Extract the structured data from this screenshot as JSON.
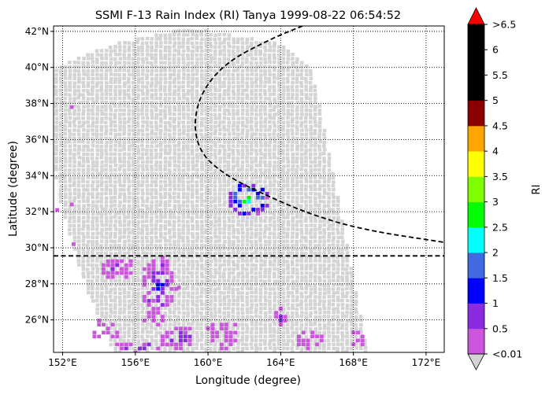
{
  "chart_data": {
    "type": "heatmap",
    "title": "SSMI F-13 Rain Index (RI) Tanya 1999-08-22 06:54:52",
    "xlabel": "Longitude (degree)",
    "ylabel": "Latitude (degree)",
    "xlim": [
      151.5,
      173.0
    ],
    "ylim": [
      24.2,
      42.3
    ],
    "xticks": [
      {
        "value": 152,
        "label": "152°E"
      },
      {
        "value": 156,
        "label": "156°E"
      },
      {
        "value": 160,
        "label": "160°E"
      },
      {
        "value": 164,
        "label": "164°E"
      },
      {
        "value": 168,
        "label": "168°E"
      },
      {
        "value": 172,
        "label": "172°E"
      }
    ],
    "yticks": [
      {
        "value": 26,
        "label": "26°N"
      },
      {
        "value": 28,
        "label": "28°N"
      },
      {
        "value": 30,
        "label": "30°N"
      },
      {
        "value": 32,
        "label": "32°N"
      },
      {
        "value": 34,
        "label": "34°N"
      },
      {
        "value": 36,
        "label": "36°N"
      },
      {
        "value": 38,
        "label": "38°N"
      },
      {
        "value": 40,
        "label": "40°N"
      },
      {
        "value": 42,
        "label": "42°N"
      }
    ],
    "grid": true,
    "reference_latitude": 29.55,
    "swath": {
      "no_rain_color": "#d3d3d3",
      "corners_lon_lat": [
        [
          151.6,
          40.0
        ],
        [
          155.0,
          41.4
        ],
        [
          159.0,
          42.2
        ],
        [
          164.0,
          41.3
        ],
        [
          165.8,
          39.8
        ],
        [
          168.8,
          24.2
        ],
        [
          154.8,
          24.2
        ],
        [
          153.2,
          28.0
        ],
        [
          151.7,
          33.0
        ],
        [
          151.5,
          37.0
        ]
      ]
    },
    "storm_track": {
      "style": "dashed",
      "lon": [
        165.2,
        163.5,
        161.0,
        159.6,
        159.2,
        159.6,
        161.0,
        163.0,
        165.5,
        168.5,
        173.0
      ],
      "lat": [
        42.3,
        41.6,
        40.3,
        38.6,
        36.8,
        35.2,
        34.0,
        33.0,
        31.9,
        31.0,
        30.3
      ]
    },
    "colorbar": {
      "label": "RI",
      "boundaries": [
        0.01,
        0.5,
        1,
        1.5,
        2,
        2.5,
        3,
        3.5,
        4,
        4.5,
        5,
        5.5,
        6,
        6.5
      ],
      "tick_labels": [
        "<0.01",
        "0.5",
        "1",
        "1.5",
        "2",
        "2.5",
        "3",
        "3.5",
        "4",
        "4.5",
        "5",
        "5.5",
        "6",
        ">6.5"
      ],
      "colors": [
        "#cc55dd",
        "#8a2be2",
        "#0000ff",
        "#4169e1",
        "#00ffff",
        "#00ff00",
        "#7fff00",
        "#ffff00",
        "#ffa500",
        "#8b0000",
        "#000000",
        "#000000",
        "#000000"
      ],
      "under_color": "#d3d3d3",
      "over_color": "#ff0000"
    },
    "rain_clusters": [
      {
        "lon": 162.2,
        "lat": 32.7,
        "rlon": 1.2,
        "rlat": 0.9,
        "peak": 3.0,
        "n": 26
      },
      {
        "lon": 157.3,
        "lat": 27.9,
        "rlon": 0.9,
        "rlat": 1.6,
        "peak": 1.1,
        "n": 45
      },
      {
        "lon": 155.0,
        "lat": 28.8,
        "rlon": 0.9,
        "rlat": 0.6,
        "peak": 0.6,
        "n": 20
      },
      {
        "lon": 158.5,
        "lat": 25.0,
        "rlon": 1.1,
        "rlat": 0.6,
        "peak": 0.9,
        "n": 18
      },
      {
        "lon": 160.8,
        "lat": 25.2,
        "rlon": 1.0,
        "rlat": 0.8,
        "peak": 0.5,
        "n": 16
      },
      {
        "lon": 165.5,
        "lat": 24.9,
        "rlon": 0.8,
        "rlat": 0.5,
        "peak": 0.5,
        "n": 9
      },
      {
        "lon": 164.0,
        "lat": 26.2,
        "rlon": 0.2,
        "rlat": 0.5,
        "peak": 1.0,
        "n": 6
      },
      {
        "lon": 156.3,
        "lat": 24.5,
        "rlon": 1.3,
        "rlat": 0.3,
        "peak": 1.0,
        "n": 8
      },
      {
        "lon": 154.3,
        "lat": 25.5,
        "rlon": 0.9,
        "rlat": 0.6,
        "peak": 0.5,
        "n": 8
      },
      {
        "lon": 168.2,
        "lat": 24.9,
        "rlon": 0.3,
        "rlat": 0.5,
        "peak": 0.5,
        "n": 4
      },
      {
        "lon": 157.1,
        "lat": 26.1,
        "rlon": 0.6,
        "rlat": 0.4,
        "peak": 0.5,
        "n": 6
      }
    ],
    "isolated_rain_pixels": [
      {
        "lon": 152.5,
        "lat": 37.8,
        "value": 0.3
      },
      {
        "lon": 151.7,
        "lat": 32.1,
        "value": 0.3
      },
      {
        "lon": 152.5,
        "lat": 32.4,
        "value": 0.3
      },
      {
        "lon": 152.6,
        "lat": 30.2,
        "value": 0.3
      },
      {
        "lon": 158.4,
        "lat": 27.8,
        "value": 0.3
      }
    ]
  }
}
